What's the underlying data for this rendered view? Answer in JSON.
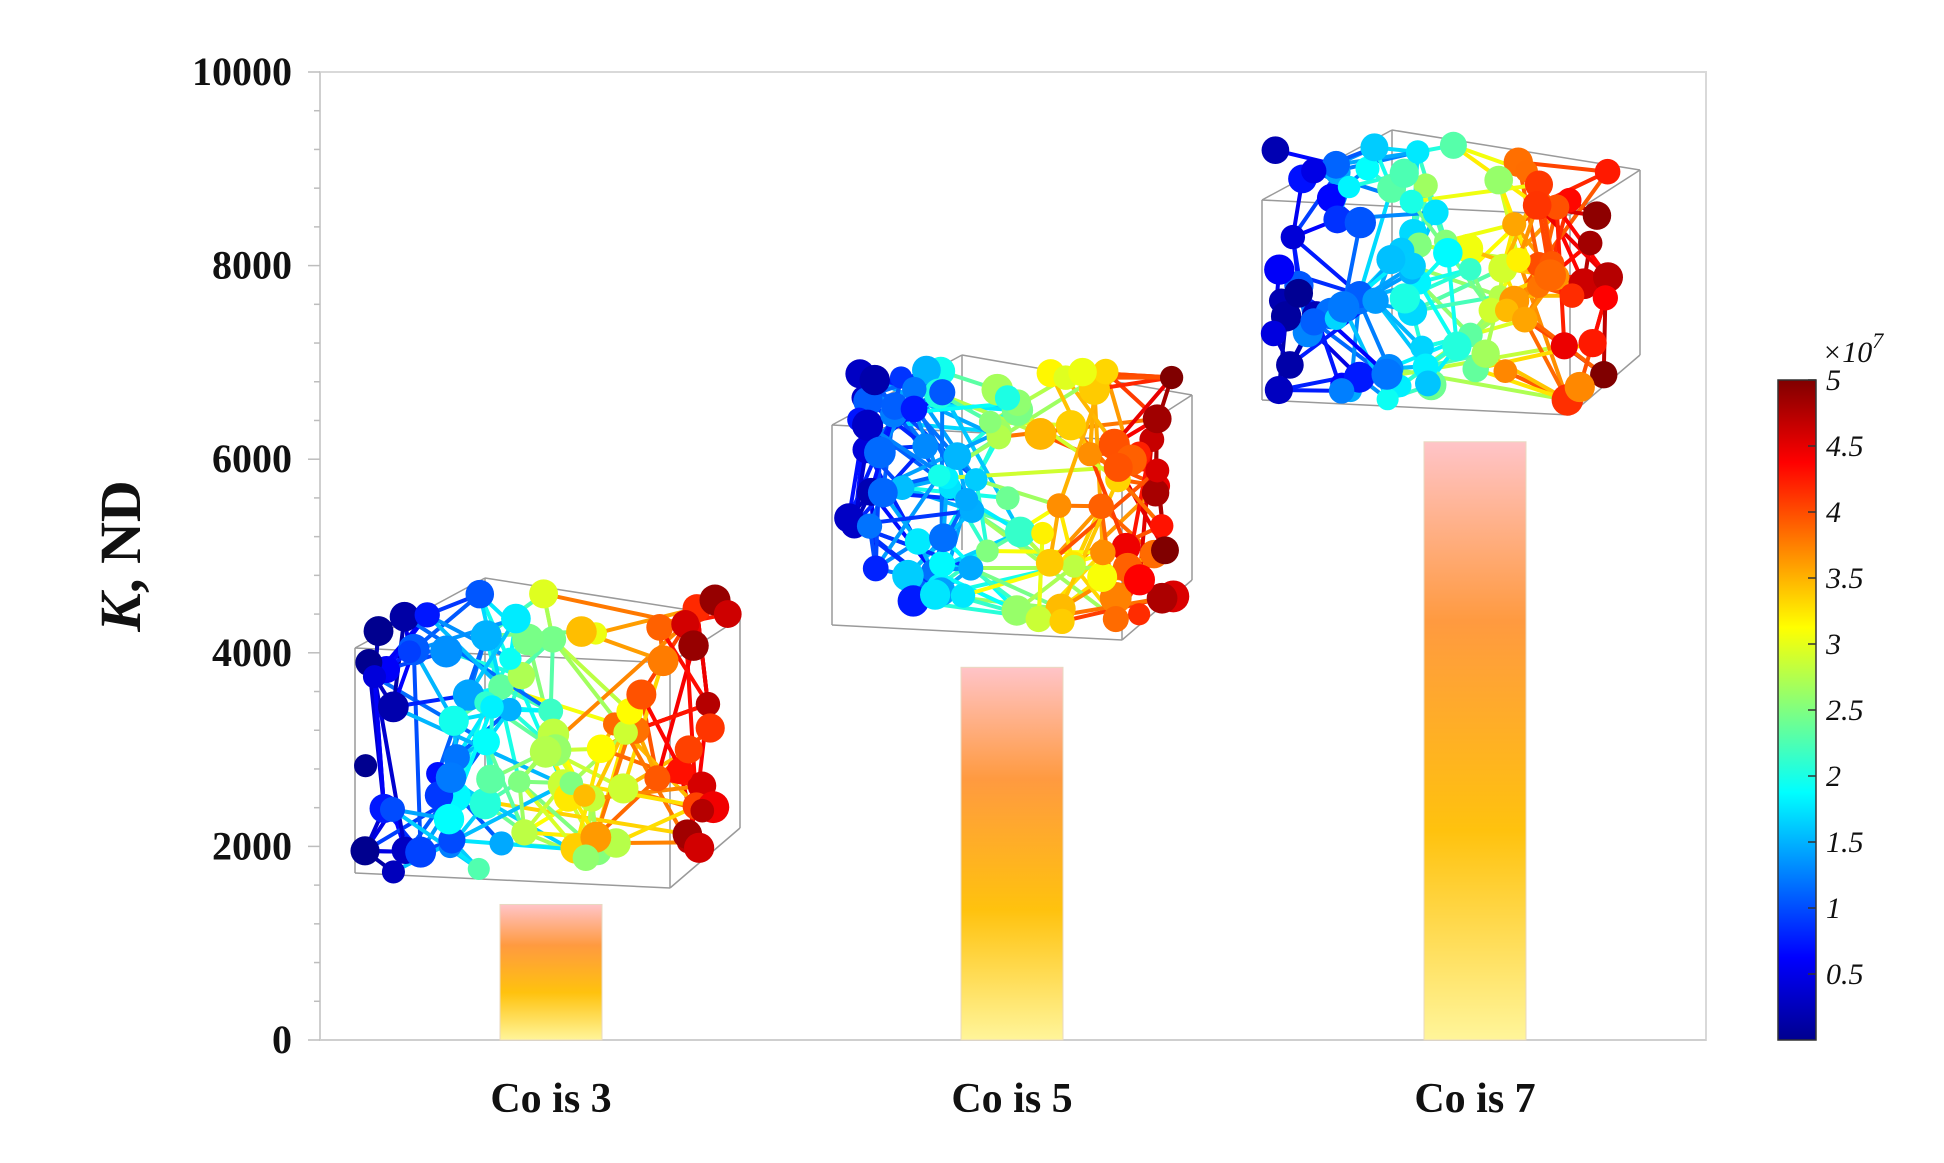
{
  "chart_data": {
    "type": "bar",
    "categories": [
      "Co is 3",
      "Co is 5",
      "Co is 7"
    ],
    "values": [
      1400,
      3850,
      6180
    ],
    "title": "",
    "xlabel": "",
    "ylabel": "K, ND",
    "ylabel_parts": {
      "symbol": "K",
      "rest": ", ND"
    },
    "ylim": [
      0,
      10000
    ],
    "yticks": [
      "0",
      "2000",
      "4000",
      "6000",
      "8000",
      "10000"
    ],
    "grid": false,
    "bar_fill": [
      "#fff59a",
      "#ffc20e",
      "#ff9a40",
      "#ffc4c8"
    ],
    "colorbar": {
      "min": 0,
      "max": 5,
      "exponent_label": "×10",
      "exponent": "7",
      "ticks": [
        "0.5",
        "1",
        "1.5",
        "2",
        "2.5",
        "3",
        "3.5",
        "4",
        "4.5",
        "5"
      ],
      "colormap": "jet"
    }
  }
}
